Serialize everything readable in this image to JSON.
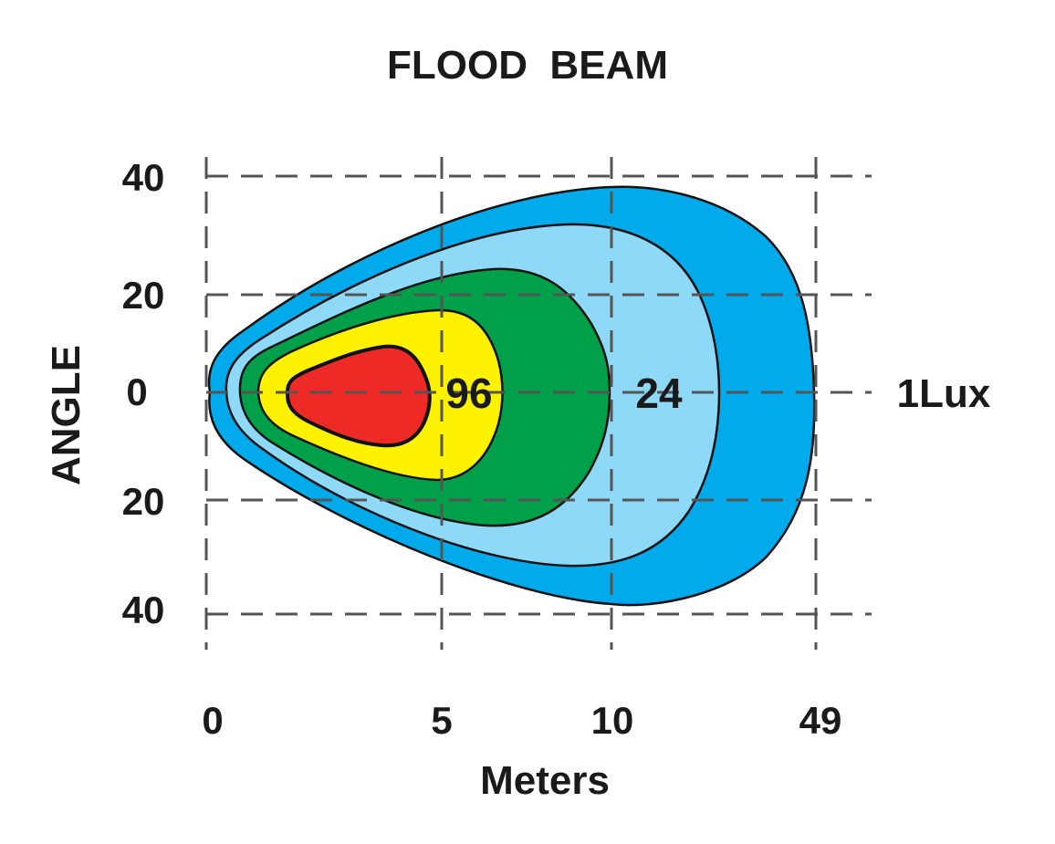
{
  "chart_data": {
    "type": "area",
    "title": "FLOOD  BEAM",
    "xlabel": "Meters",
    "ylabel": "ANGLE",
    "x_ticks": [
      "0",
      "5",
      "10",
      "49"
    ],
    "y_ticks": [
      "40",
      "20",
      "0",
      "20",
      "40"
    ],
    "grid": true,
    "isolux_labels": [
      "96",
      "24",
      "1Lux"
    ],
    "zones": [
      {
        "name": "outer",
        "color": "#00AAEB"
      },
      {
        "name": "light-blue",
        "color": "#8ED8F8"
      },
      {
        "name": "green",
        "color": "#00A04A"
      },
      {
        "name": "yellow",
        "color": "#FFF200"
      },
      {
        "name": "red",
        "color": "#ED2A26"
      }
    ]
  }
}
